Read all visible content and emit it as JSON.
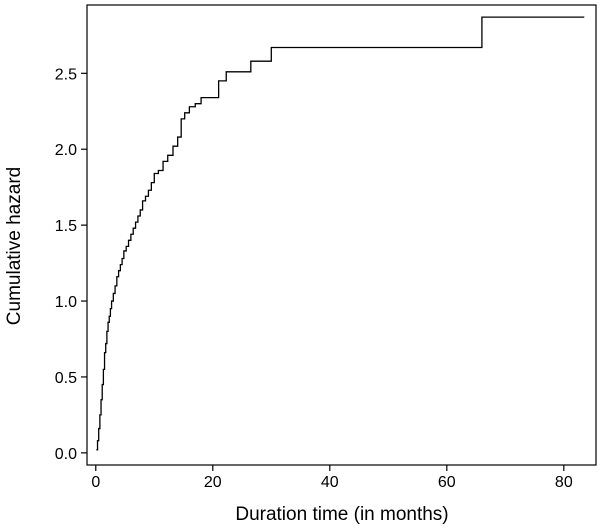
{
  "chart_data": {
    "type": "line",
    "title": "",
    "xlabel": "Duration time (in months)",
    "ylabel": "Cumulative hazard",
    "xlim": [
      -1.5,
      85.5
    ],
    "ylim": [
      -0.08,
      2.95
    ],
    "xticks": [
      0,
      20,
      40,
      60,
      80
    ],
    "yticks": [
      0.0,
      0.5,
      1.0,
      1.5,
      2.0,
      2.5
    ],
    "xtick_labels": [
      "0",
      "20",
      "40",
      "60",
      "80"
    ],
    "ytick_labels": [
      "0.0",
      "0.5",
      "1.0",
      "1.5",
      "2.0",
      "2.5"
    ],
    "grid": false,
    "legend": "none",
    "line_color": "#000000",
    "step": "post",
    "series": [
      {
        "x": [
          0.1,
          0.3,
          0.5,
          0.7,
          0.9,
          1.1,
          1.3,
          1.5,
          1.7,
          1.9,
          2.1,
          2.3,
          2.5,
          2.7,
          3.0,
          3.3,
          3.6,
          3.9,
          4.2,
          4.5,
          4.8,
          5.2,
          5.6,
          6.0,
          6.4,
          6.8,
          7.2,
          7.6,
          8.0,
          8.5,
          9.0,
          9.5,
          10.0,
          10.7,
          11.5,
          12.3,
          13.2,
          14.0,
          14.6,
          15.2,
          16.0,
          17.0,
          18.0,
          21.0,
          22.3,
          26.5,
          30.0,
          66.0,
          83.5
        ],
        "y": [
          0.02,
          0.08,
          0.16,
          0.25,
          0.35,
          0.45,
          0.55,
          0.66,
          0.72,
          0.8,
          0.86,
          0.9,
          0.95,
          1.0,
          1.05,
          1.1,
          1.16,
          1.2,
          1.24,
          1.28,
          1.33,
          1.36,
          1.4,
          1.44,
          1.48,
          1.52,
          1.56,
          1.6,
          1.66,
          1.69,
          1.73,
          1.78,
          1.84,
          1.86,
          1.92,
          1.96,
          2.02,
          2.08,
          2.2,
          2.24,
          2.28,
          2.3,
          2.34,
          2.45,
          2.51,
          2.58,
          2.67,
          2.87,
          2.87
        ]
      }
    ]
  }
}
